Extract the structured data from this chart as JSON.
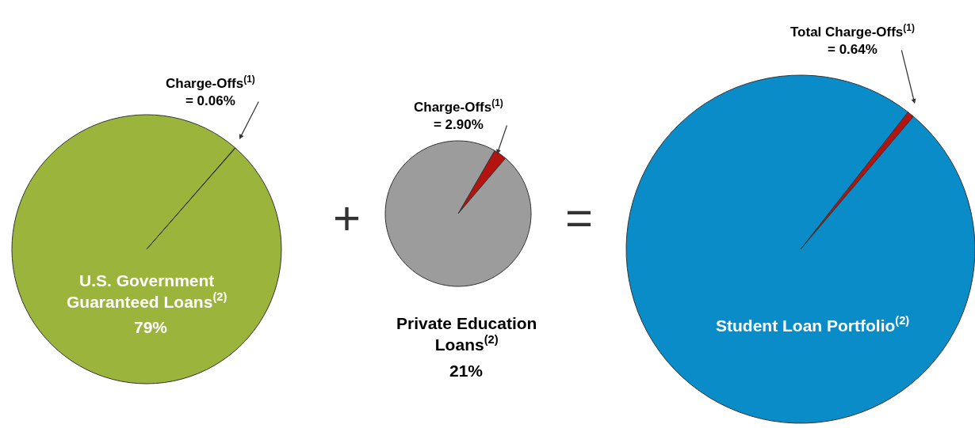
{
  "chart_data": [
    {
      "type": "pie",
      "categories": [
        "Charge-Offs$^{(1)}$",
        "U.S. Government\nGuaranteed Loans$^{(2)}$"
      ],
      "values": [
        0.06,
        99.94
      ],
      "colors": [
        "#4a2a1a",
        "#9bb43c"
      ],
      "value_labels": [
        "= 0.06%",
        null
      ],
      "annotations": [
        "79%"
      ]
    },
    {
      "type": "pie",
      "categories": [
        "Charge-Offs$^{(1)}$",
        "Private Education\nLoans$^{(2)}$"
      ],
      "values": [
        2.9,
        97.1
      ],
      "colors": [
        "#b3140f",
        "#9c9c9c"
      ],
      "value_labels": [
        "= 2.90%",
        null
      ],
      "annotations": [
        "+",
        "21%"
      ]
    },
    {
      "type": "pie",
      "categories": [
        "Total Charge-Offs$^{(1)}$",
        "Student Loan Portfolio$^{(2)}$"
      ],
      "values": [
        0.64,
        99.36
      ],
      "colors": [
        "#b3140f",
        "#0a8cc9"
      ],
      "value_labels": [
        "= 0.64%",
        null
      ],
      "annotations": [
        "="
      ]
    }
  ]
}
